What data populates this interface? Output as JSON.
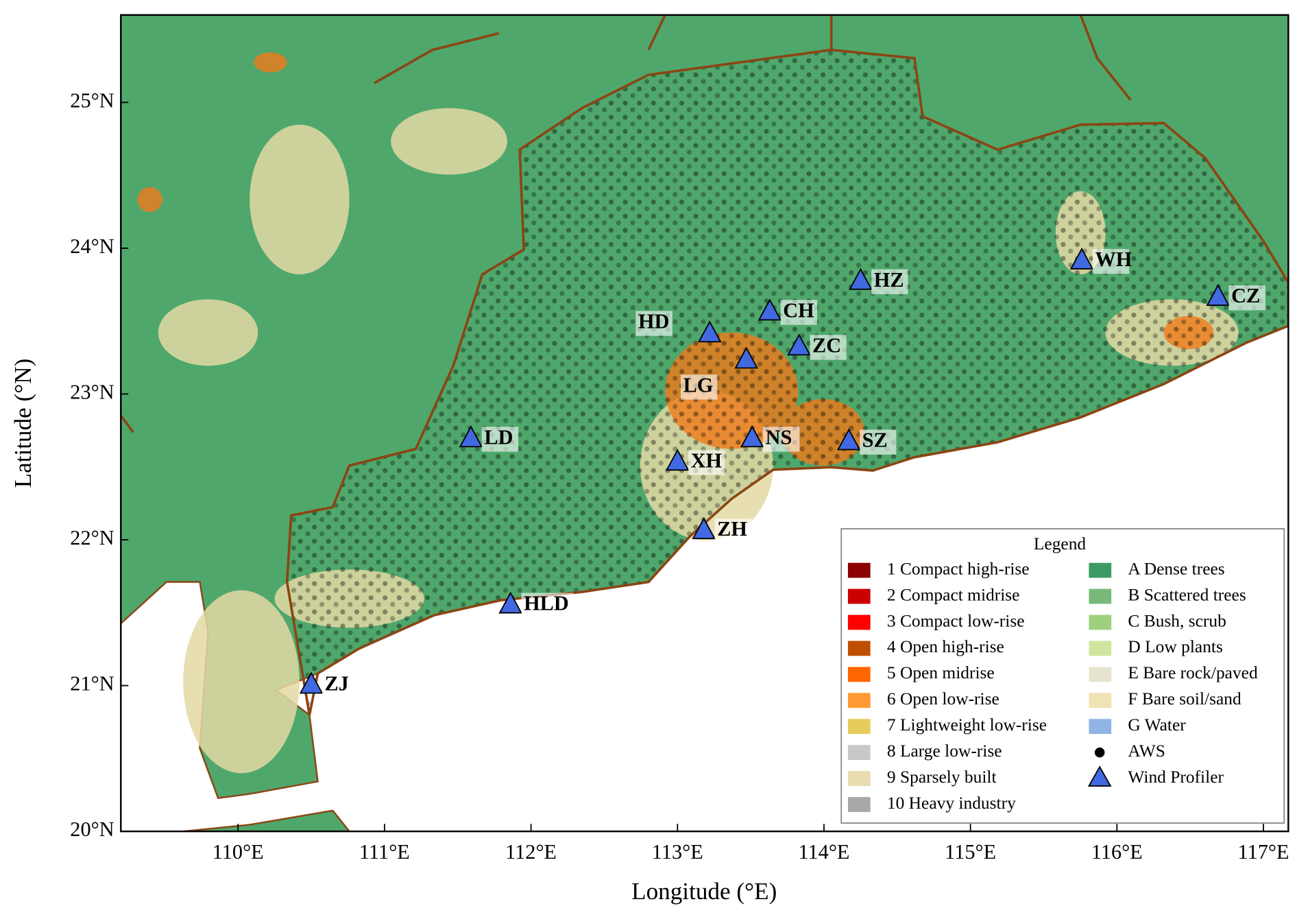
{
  "chart_data": {
    "type": "map",
    "xlabel": "Longitude (°E)",
    "ylabel": "Latitude (°N)",
    "xlim": [
      109.2,
      117.17
    ],
    "ylim": [
      20,
      25.6
    ],
    "xticks": [
      {
        "value": 110,
        "label": "110°E"
      },
      {
        "value": 111,
        "label": "111°E"
      },
      {
        "value": 112,
        "label": "112°E"
      },
      {
        "value": 113,
        "label": "113°E"
      },
      {
        "value": 114,
        "label": "114°E"
      },
      {
        "value": 115,
        "label": "115°E"
      },
      {
        "value": 116,
        "label": "116°E"
      },
      {
        "value": 117,
        "label": "117°E"
      }
    ],
    "yticks": [
      {
        "value": 20,
        "label": "20°N"
      },
      {
        "value": 21,
        "label": "21°N"
      },
      {
        "value": 22,
        "label": "22°N"
      },
      {
        "value": 23,
        "label": "23°N"
      },
      {
        "value": 24,
        "label": "24°N"
      },
      {
        "value": 25,
        "label": "25°N"
      }
    ],
    "stations": [
      {
        "name": "LD",
        "lon": 111.59,
        "lat": 22.69
      },
      {
        "name": "HLD",
        "lon": 111.86,
        "lat": 21.55
      },
      {
        "name": "ZJ",
        "lon": 110.5,
        "lat": 21.0
      },
      {
        "name": "XH",
        "lon": 113.0,
        "lat": 22.53
      },
      {
        "name": "ZH",
        "lon": 113.18,
        "lat": 22.06
      },
      {
        "name": "NS",
        "lon": 113.51,
        "lat": 22.69
      },
      {
        "name": "SZ",
        "lon": 114.17,
        "lat": 22.67
      },
      {
        "name": "LG",
        "lon": 113.47,
        "lat": 23.23
      },
      {
        "name": "HD",
        "lon": 113.22,
        "lat": 23.41
      },
      {
        "name": "CH",
        "lon": 113.63,
        "lat": 23.56
      },
      {
        "name": "ZC",
        "lon": 113.83,
        "lat": 23.32
      },
      {
        "name": "HZ",
        "lon": 114.25,
        "lat": 23.77
      },
      {
        "name": "WH",
        "lon": 115.76,
        "lat": 23.91
      },
      {
        "name": "CZ",
        "lon": 116.69,
        "lat": 23.66
      }
    ],
    "station_color": "#4169e1",
    "legend": {
      "title": "Legend",
      "items": [
        {
          "label": "1 Compact high-rise",
          "color": "#8b0000",
          "marker": "square"
        },
        {
          "label": "2 Compact midrise",
          "color": "#cc0000",
          "marker": "square"
        },
        {
          "label": "3 Compact low-rise",
          "color": "#ff0000",
          "marker": "square"
        },
        {
          "label": "4 Open high-rise",
          "color": "#bf4d00",
          "marker": "square"
        },
        {
          "label": "5 Open midrise",
          "color": "#ff6600",
          "marker": "square"
        },
        {
          "label": "6 Open low-rise",
          "color": "#ff9933",
          "marker": "square"
        },
        {
          "label": "7 Lightweight low-rise",
          "color": "#e6cc5c",
          "marker": "square"
        },
        {
          "label": "8 Large low-rise",
          "color": "#c8c8c8",
          "marker": "square"
        },
        {
          "label": "9 Sparsely built",
          "color": "#e8dcb0",
          "marker": "square"
        },
        {
          "label": "10 Heavy industry",
          "color": "#a8a8a8",
          "marker": "square"
        },
        {
          "label": "A Dense trees",
          "color": "#3d9a62",
          "marker": "square"
        },
        {
          "label": "B Scattered trees",
          "color": "#78b97a",
          "marker": "square"
        },
        {
          "label": "C Bush, scrub",
          "color": "#9fd07e",
          "marker": "square"
        },
        {
          "label": "D Low plants",
          "color": "#cfe6a0",
          "marker": "square"
        },
        {
          "label": "E Bare rock/paved",
          "color": "#e6e3cf",
          "marker": "square"
        },
        {
          "label": "F Bare soil/sand",
          "color": "#efe3b4",
          "marker": "square"
        },
        {
          "label": "G Water",
          "color": "#8fb4e3",
          "marker": "square"
        },
        {
          "label": "AWS",
          "color": "#000000",
          "marker": "dot"
        },
        {
          "label": "Wind Profiler",
          "color": "#4169e1",
          "marker": "triangle"
        }
      ]
    }
  }
}
